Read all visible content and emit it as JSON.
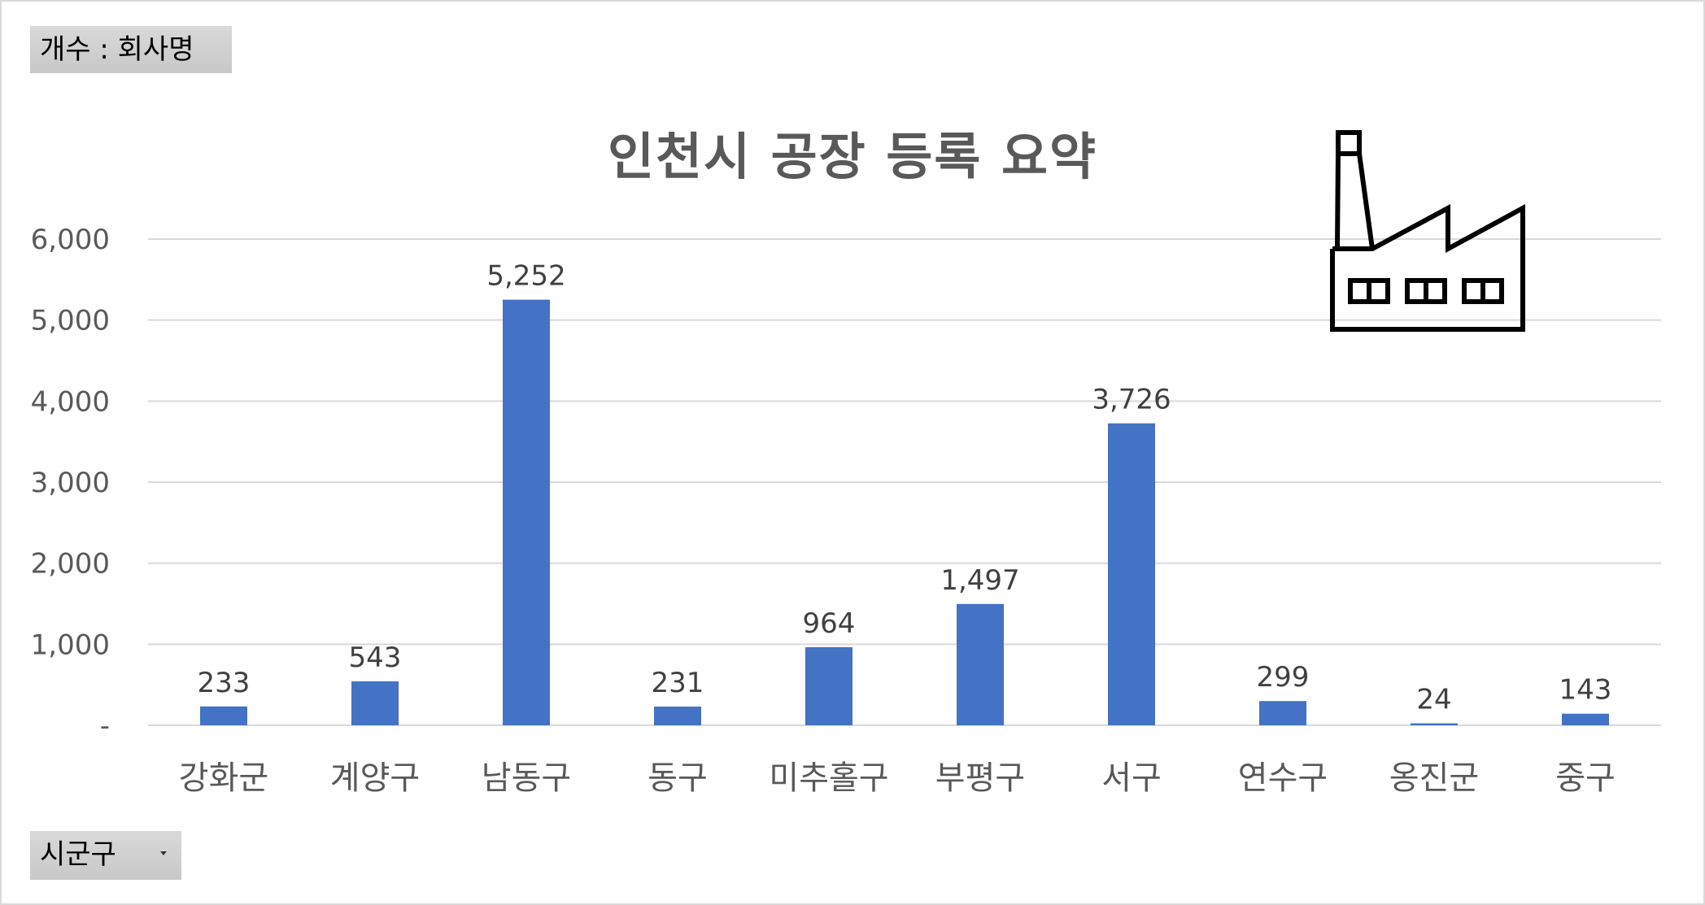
{
  "pivot": {
    "value_field": "개수 : 회사명",
    "axis_field": "시군구"
  },
  "icons": {
    "factory": "factory-icon",
    "dropdown": "dropdown-arrow-icon"
  },
  "colors": {
    "bar": "#4472C4",
    "gridline": "#d9d9d9",
    "text": "#595959"
  },
  "chart_data": {
    "type": "bar",
    "title": "인천시 공장 등록 요약",
    "categories": [
      "강화군",
      "계양구",
      "남동구",
      "동구",
      "미추홀구",
      "부평구",
      "서구",
      "연수구",
      "옹진군",
      "중구"
    ],
    "values": [
      233,
      543,
      5252,
      231,
      964,
      1497,
      3726,
      299,
      24,
      143
    ],
    "data_labels": [
      "233",
      "543",
      "5,252",
      "231",
      "964",
      "1,497",
      "3,726",
      "299",
      "24",
      "143"
    ],
    "ylim": [
      0,
      6000
    ],
    "yticks": [
      0,
      1000,
      2000,
      3000,
      4000,
      5000,
      6000
    ],
    "ytick_labels": [
      "-",
      "1,000",
      "2,000",
      "3,000",
      "4,000",
      "5,000",
      "6,000"
    ],
    "xlabel": "",
    "ylabel": "",
    "grid": true,
    "legend": "none"
  }
}
